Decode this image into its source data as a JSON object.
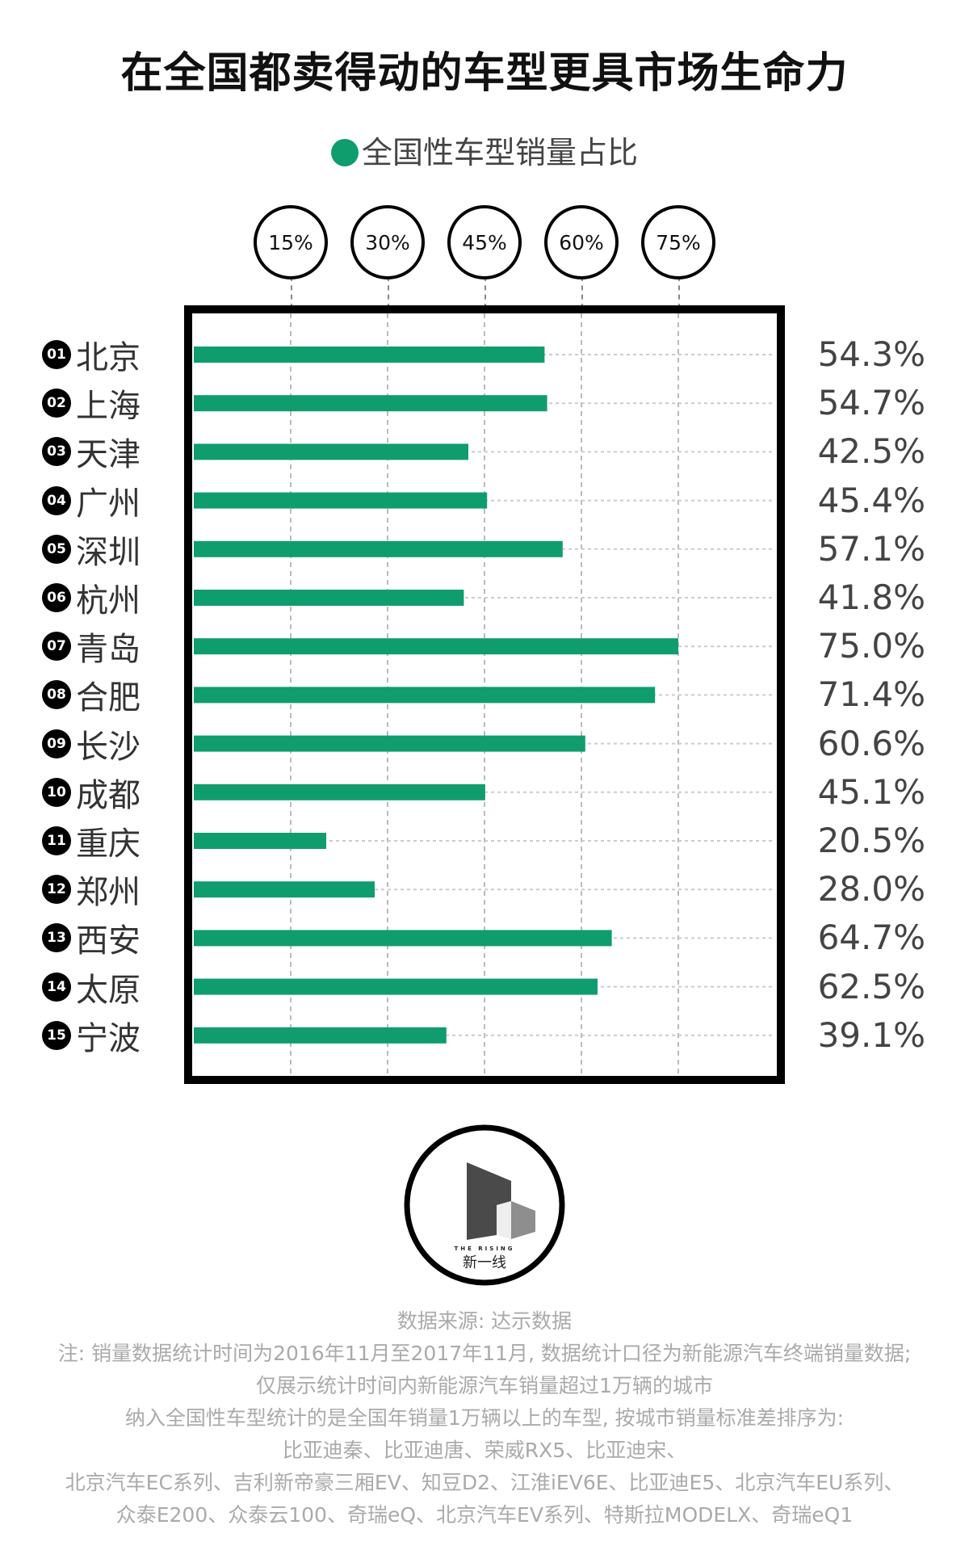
{
  "chart_data": {
    "type": "bar",
    "orientation": "horizontal",
    "title": "在全国都卖得动的车型更具市场生命力",
    "legend": [
      "全国性车型销量占比"
    ],
    "legend_placement": "top",
    "xlim": [
      0,
      80
    ],
    "ticks": [
      "15%",
      "30%",
      "45%",
      "60%",
      "75%"
    ],
    "tick_values": [
      15,
      30,
      45,
      60,
      75
    ],
    "grid": true,
    "categories": [
      "北京",
      "上海",
      "天津",
      "广州",
      "深圳",
      "杭州",
      "青岛",
      "合肥",
      "长沙",
      "成都",
      "重庆",
      "郑州",
      "西安",
      "太原",
      "宁波"
    ],
    "ranks": [
      "01",
      "02",
      "03",
      "04",
      "05",
      "06",
      "07",
      "08",
      "09",
      "10",
      "11",
      "12",
      "13",
      "14",
      "15"
    ],
    "values": [
      54.3,
      54.7,
      42.5,
      45.4,
      57.1,
      41.8,
      75.0,
      71.4,
      60.6,
      45.1,
      20.5,
      28.0,
      64.7,
      62.5,
      39.1
    ],
    "value_labels": [
      "54.3%",
      "54.7%",
      "42.5%",
      "45.4%",
      "57.1%",
      "41.8%",
      "75.0%",
      "71.4%",
      "60.6%",
      "45.1%",
      "20.5%",
      "28.0%",
      "64.7%",
      "62.5%",
      "39.1%"
    ],
    "bar_color": "#0f9d6e"
  },
  "logo": {
    "en": "THE RISING",
    "cn": "新一线"
  },
  "footer": {
    "source": "数据来源: 达示数据",
    "notes": [
      "注: 销量数据统计时间为2016年11月至2017年11月, 数据统计口径为新能源汽车终端销量数据;",
      "仅展示统计时间内新能源汽车销量超过1万辆的城市",
      "纳入全国性车型统计的是全国年销量1万辆以上的车型, 按城市销量标准差排序为:",
      "比亚迪秦、比亚迪唐、荣威RX5、比亚迪宋、",
      "北京汽车EC系列、吉利新帝豪三厢EV、知豆D2、江淮iEV6E、比亚迪E5、北京汽车EU系列、",
      "众泰E200、众泰云100、奇瑞eQ、北京汽车EV系列、特斯拉MODELX、奇瑞eQ1"
    ]
  }
}
